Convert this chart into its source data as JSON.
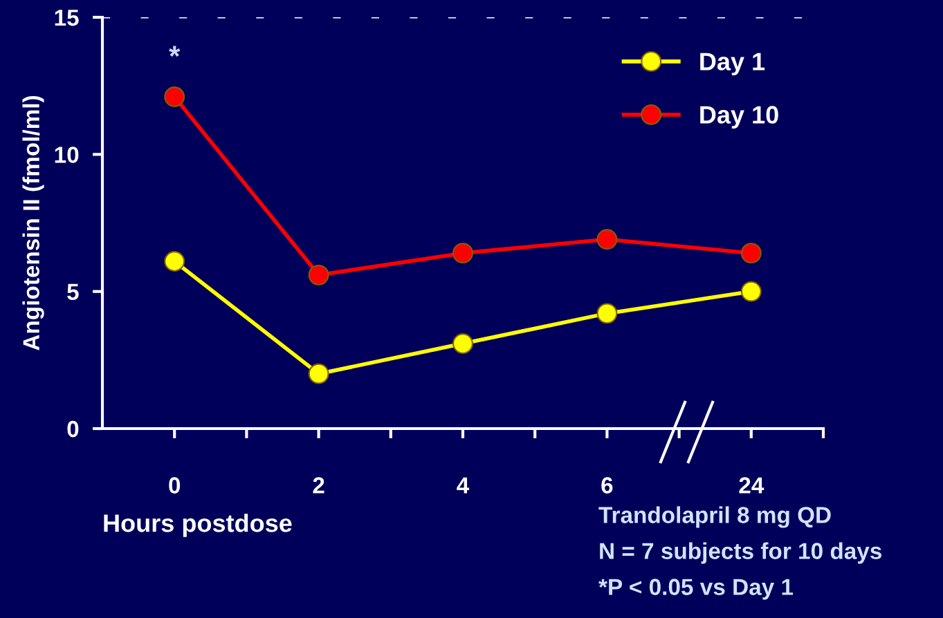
{
  "chart_data": {
    "type": "line",
    "xlabel": "Hours postdose",
    "ylabel": "Angiotensin II (fmol/ml)",
    "categories": [
      "0",
      "2",
      "4",
      "6",
      "24"
    ],
    "series": [
      {
        "name": "Day 1",
        "color": "#ffff00",
        "values": [
          6.1,
          2.0,
          3.1,
          4.2,
          5.0
        ]
      },
      {
        "name": "Day 10",
        "color": "#ff0000",
        "values": [
          12.1,
          5.6,
          6.4,
          6.9,
          6.4
        ]
      }
    ],
    "ylim": [
      0,
      15
    ],
    "yticks": [
      0,
      5,
      10,
      15
    ],
    "ref_lines": [
      {
        "axis": "y",
        "value": 15,
        "color": "#ffffff",
        "line_style": "dashed"
      }
    ],
    "annotations": [
      "*",
      "Trandolapril 8 mg QD",
      "N = 7 subjects for 10 days",
      "*P < 0.05 vs Day 1"
    ],
    "legend": "top right",
    "marker": "circle",
    "line_style": "solid",
    "grid": false
  }
}
